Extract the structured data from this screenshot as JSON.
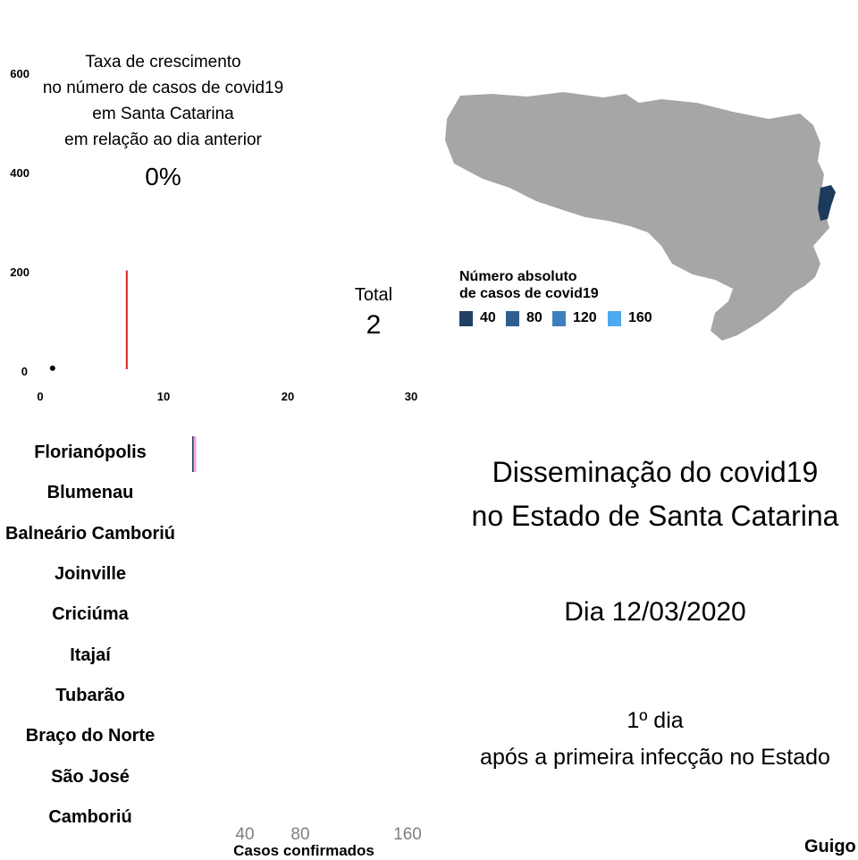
{
  "colors": {
    "map_fill": "#a6a6a6",
    "map_highlight": "#1c3a5c",
    "growth_line": "#d62020",
    "bar_marker": "#f4a6d4",
    "legend": [
      "#213f63",
      "#2f5f8f",
      "#3d80bd",
      "#4eaaf0"
    ]
  },
  "growth": {
    "lines": [
      "Taxa de crescimento",
      "no número de casos de covid19",
      "em Santa Catarina",
      "em relação ao dia anterior"
    ],
    "value": "0%"
  },
  "total": {
    "label": "Total",
    "value": "2"
  },
  "map": {
    "legend_title_1": "Número absoluto",
    "legend_title_2": "de casos de covid19",
    "legend_items": [
      "40",
      "80",
      "120",
      "160"
    ]
  },
  "title": {
    "line1": "Disseminação do covid19",
    "line2": "no Estado de Santa Catarina",
    "date": "Dia 12/03/2020",
    "day": "1º dia",
    "since": "após a primeira infecção no Estado"
  },
  "credit": "Guigo",
  "chart_data": [
    {
      "type": "scatter",
      "xlim": [
        0,
        30
      ],
      "ylim": [
        0,
        600
      ],
      "x_ticks": [
        "0",
        "10",
        "20",
        "30"
      ],
      "y_ticks": [
        "0",
        "200",
        "400",
        "600"
      ],
      "points": [
        {
          "x": 1,
          "y": 2
        }
      ],
      "vline": {
        "x": 7,
        "y_from": 0,
        "y_to": 200
      },
      "grid": false
    },
    {
      "type": "bar",
      "orientation": "horizontal",
      "categories": [
        "Florianópolis",
        "Blumenau",
        "Balneário Camboriú",
        "Joinville",
        "Criciúma",
        "Itajaí",
        "Tubarão",
        "Braço do Norte",
        "São José",
        "Camboriú"
      ],
      "values": [
        2,
        0,
        0,
        0,
        0,
        0,
        0,
        0,
        0,
        0
      ],
      "x_ticks": [
        "40",
        "80",
        "160"
      ],
      "xlabel": "Casos confirmados",
      "xlim": [
        0,
        160
      ]
    }
  ]
}
